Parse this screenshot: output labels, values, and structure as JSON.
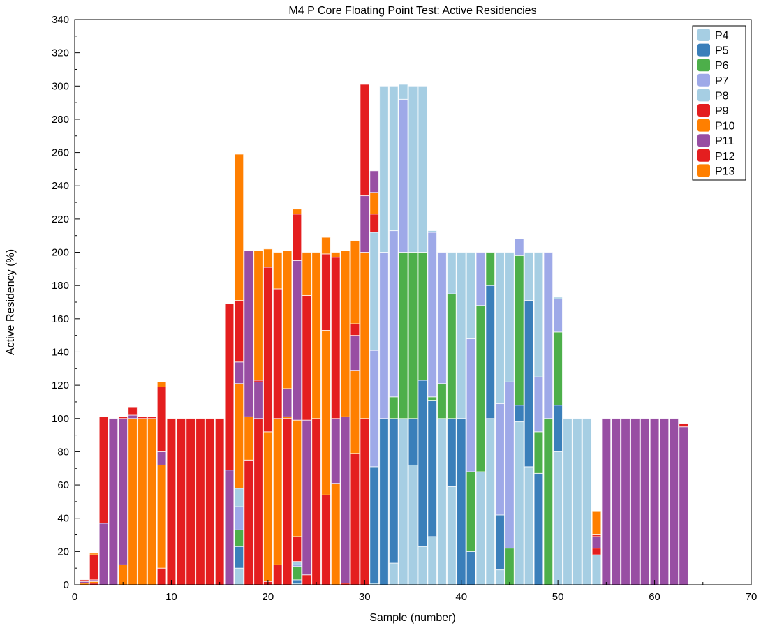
{
  "chart_data": {
    "type": "bar",
    "stacked": true,
    "title": "M4 P Core Floating Point Test: Active Residencies",
    "xlabel": "Sample (number)",
    "ylabel": "Active Residency (%)",
    "xlim": [
      0,
      70
    ],
    "ylim": [
      0,
      340
    ],
    "xticks": [
      0,
      10,
      20,
      30,
      40,
      50,
      60,
      70
    ],
    "yticks": [
      0,
      20,
      40,
      60,
      80,
      100,
      120,
      140,
      160,
      180,
      200,
      220,
      240,
      260,
      280,
      300,
      320,
      340
    ],
    "grid": false,
    "legend_position": "top-right",
    "series": [
      {
        "name": "P4",
        "color": "#a6cee3"
      },
      {
        "name": "P5",
        "color": "#3a7fba"
      },
      {
        "name": "P6",
        "color": "#4daf4a"
      },
      {
        "name": "P7",
        "color": "#9ea9e8"
      },
      {
        "name": "P8",
        "color": "#a6cee3"
      },
      {
        "name": "P9",
        "color": "#e41e1f"
      },
      {
        "name": "P10",
        "color": "#ff7f00"
      },
      {
        "name": "P11",
        "color": "#984ea3"
      },
      {
        "name": "P12",
        "color": "#e41e1f"
      },
      {
        "name": "P13",
        "color": "#ff7f00"
      }
    ],
    "samples": [
      {
        "x": 1,
        "v": {
          "P10": 1,
          "P11": 1,
          "P12": 1
        }
      },
      {
        "x": 2,
        "v": {
          "P9": 1,
          "P10": 1,
          "P11": 1,
          "P12": 15,
          "P13": 1
        }
      },
      {
        "x": 3,
        "v": {
          "P11": 37,
          "P12": 64
        }
      },
      {
        "x": 4,
        "v": {
          "P11": 100
        }
      },
      {
        "x": 5,
        "v": {
          "P10": 12,
          "P11": 88,
          "P12": 1
        }
      },
      {
        "x": 6,
        "v": {
          "P10": 100,
          "P11": 2,
          "P12": 5
        }
      },
      {
        "x": 7,
        "v": {
          "P10": 100,
          "P12": 1
        }
      },
      {
        "x": 8,
        "v": {
          "P10": 100,
          "P12": 1
        }
      },
      {
        "x": 9,
        "v": {
          "P9": 10,
          "P10": 62,
          "P11": 8,
          "P12": 39,
          "P13": 3
        }
      },
      {
        "x": 10,
        "v": {
          "P9": 100
        }
      },
      {
        "x": 11,
        "v": {
          "P9": 100
        }
      },
      {
        "x": 12,
        "v": {
          "P9": 100
        }
      },
      {
        "x": 13,
        "v": {
          "P9": 100
        }
      },
      {
        "x": 14,
        "v": {
          "P9": 100
        }
      },
      {
        "x": 15,
        "v": {
          "P9": 100
        }
      },
      {
        "x": 16,
        "v": {
          "P11": 69,
          "P12": 100
        }
      },
      {
        "x": 17,
        "v": {
          "P4": 10,
          "P5": 13,
          "P6": 10,
          "P7": 14,
          "P8": 11,
          "P10": 63,
          "P11": 13,
          "P12": 37,
          "P13": 88
        }
      },
      {
        "x": 18,
        "v": {
          "P9": 75,
          "P10": 26,
          "P11": 100
        }
      },
      {
        "x": 19,
        "v": {
          "P9": 100,
          "P11": 22,
          "P12": 1,
          "P13": 78
        }
      },
      {
        "x": 20,
        "v": {
          "P9": 2,
          "P10": 90,
          "P12": 99,
          "P13": 11
        }
      },
      {
        "x": 21,
        "v": {
          "P9": 12,
          "P10": 88,
          "P12": 78,
          "P13": 22
        }
      },
      {
        "x": 22,
        "v": {
          "P9": 100,
          "P10": 1,
          "P11": 17,
          "P13": 83
        }
      },
      {
        "x": 23,
        "v": {
          "P4": 1,
          "P5": 2,
          "P6": 8,
          "P7": 1,
          "P8": 2,
          "P9": 15,
          "P10": 70,
          "P11": 96,
          "P12": 28,
          "P13": 3
        }
      },
      {
        "x": 24,
        "v": {
          "P9": 6,
          "P11": 93,
          "P12": 75,
          "P13": 26
        }
      },
      {
        "x": 25,
        "v": {
          "P9": 100,
          "P10": 100
        }
      },
      {
        "x": 26,
        "v": {
          "P9": 54,
          "P10": 99,
          "P12": 46,
          "P13": 10
        }
      },
      {
        "x": 27,
        "v": {
          "P10": 61,
          "P11": 39,
          "P12": 97,
          "P13": 3
        }
      },
      {
        "x": 28,
        "v": {
          "P9": 1,
          "P11": 100,
          "P13": 100
        }
      },
      {
        "x": 29,
        "v": {
          "P9": 79,
          "P10": 50,
          "P11": 21,
          "P12": 7,
          "P13": 50
        }
      },
      {
        "x": 30,
        "v": {
          "P9": 100,
          "P10": 100,
          "P11": 34,
          "P12": 67
        }
      },
      {
        "x": 31,
        "v": {
          "P4": 1,
          "P5": 70,
          "P7": 70,
          "P8": 71,
          "P9": 11,
          "P10": 13,
          "P11": 13
        }
      },
      {
        "x": 32,
        "v": {
          "P5": 100,
          "P7": 100,
          "P8": 100
        }
      },
      {
        "x": 33,
        "v": {
          "P4": 13,
          "P5": 87,
          "P6": 13,
          "P7": 100,
          "P8": 87
        }
      },
      {
        "x": 34,
        "v": {
          "P4": 100,
          "P6": 100,
          "P7": 92,
          "P8": 9
        }
      },
      {
        "x": 35,
        "v": {
          "P4": 72,
          "P5": 28,
          "P6": 100,
          "P8": 100
        }
      },
      {
        "x": 36,
        "v": {
          "P4": 23,
          "P5": 100,
          "P6": 77,
          "P8": 100
        }
      },
      {
        "x": 37,
        "v": {
          "P4": 29,
          "P5": 82,
          "P6": 2,
          "P7": 99,
          "P8": 1
        }
      },
      {
        "x": 38,
        "v": {
          "P4": 100,
          "P6": 21,
          "P7": 79
        }
      },
      {
        "x": 39,
        "v": {
          "P4": 59,
          "P5": 41,
          "P6": 75,
          "P8": 25
        }
      },
      {
        "x": 40,
        "v": {
          "P5": 100,
          "P8": 100
        }
      },
      {
        "x": 41,
        "v": {
          "P5": 20,
          "P6": 48,
          "P7": 80,
          "P8": 52
        }
      },
      {
        "x": 42,
        "v": {
          "P4": 68,
          "P6": 100,
          "P7": 32
        }
      },
      {
        "x": 43,
        "v": {
          "P4": 100,
          "P5": 80,
          "P6": 20
        }
      },
      {
        "x": 44,
        "v": {
          "P4": 9,
          "P5": 33,
          "P7": 67,
          "P8": 91
        }
      },
      {
        "x": 45,
        "v": {
          "P6": 22,
          "P7": 100,
          "P8": 78
        }
      },
      {
        "x": 46,
        "v": {
          "P4": 98,
          "P5": 10,
          "P6": 90,
          "P7": 10
        }
      },
      {
        "x": 47,
        "v": {
          "P4": 71,
          "P5": 100,
          "P8": 29
        }
      },
      {
        "x": 48,
        "v": {
          "P5": 67,
          "P6": 25,
          "P7": 33,
          "P8": 75
        }
      },
      {
        "x": 49,
        "v": {
          "P6": 100,
          "P7": 100
        }
      },
      {
        "x": 50,
        "v": {
          "P4": 80,
          "P5": 28,
          "P6": 44,
          "P7": 20,
          "P8": 1
        }
      },
      {
        "x": 51,
        "v": {
          "P4": 100
        }
      },
      {
        "x": 52,
        "v": {
          "P4": 100
        }
      },
      {
        "x": 53,
        "v": {
          "P4": 100
        }
      },
      {
        "x": 54,
        "v": {
          "P4": 18,
          "P9": 4,
          "P11": 7,
          "P12": 1,
          "P13": 14
        }
      },
      {
        "x": 55,
        "v": {
          "P11": 100
        }
      },
      {
        "x": 56,
        "v": {
          "P11": 100
        }
      },
      {
        "x": 57,
        "v": {
          "P11": 100
        }
      },
      {
        "x": 58,
        "v": {
          "P11": 100
        }
      },
      {
        "x": 59,
        "v": {
          "P11": 100
        }
      },
      {
        "x": 60,
        "v": {
          "P11": 100
        }
      },
      {
        "x": 61,
        "v": {
          "P11": 100
        }
      },
      {
        "x": 62,
        "v": {
          "P11": 100
        }
      },
      {
        "x": 63,
        "v": {
          "P11": 95,
          "P12": 2
        }
      }
    ]
  }
}
